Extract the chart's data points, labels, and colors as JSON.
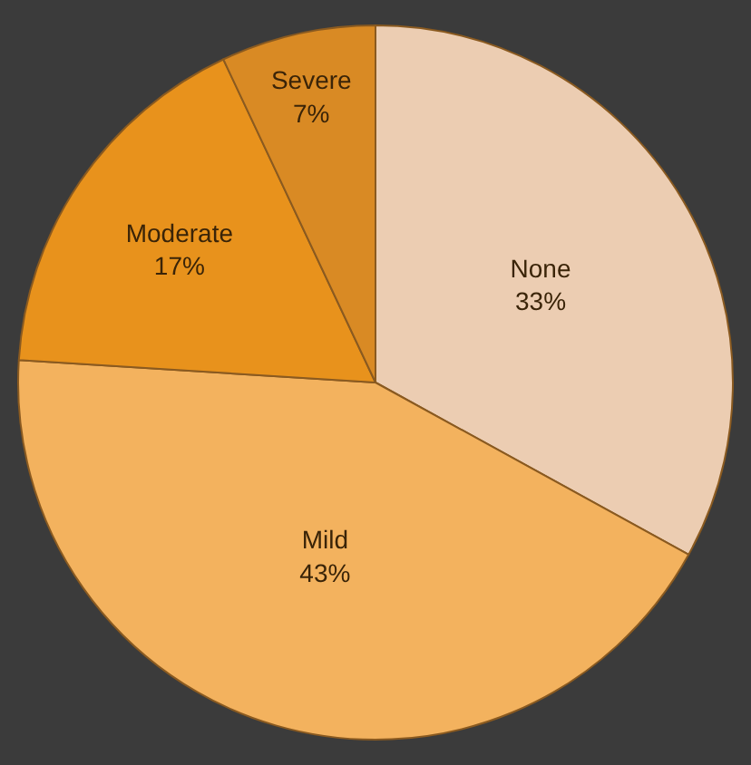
{
  "chart_data": {
    "type": "pie",
    "categories": [
      "None",
      "Mild",
      "Moderate",
      "Severe"
    ],
    "values": [
      33,
      43,
      17,
      7
    ],
    "value_labels": [
      "33%",
      "43%",
      "17%",
      "7%"
    ],
    "colors": [
      "#eccdb2",
      "#f3b25e",
      "#e8921c",
      "#d98a24"
    ],
    "legend": false
  }
}
